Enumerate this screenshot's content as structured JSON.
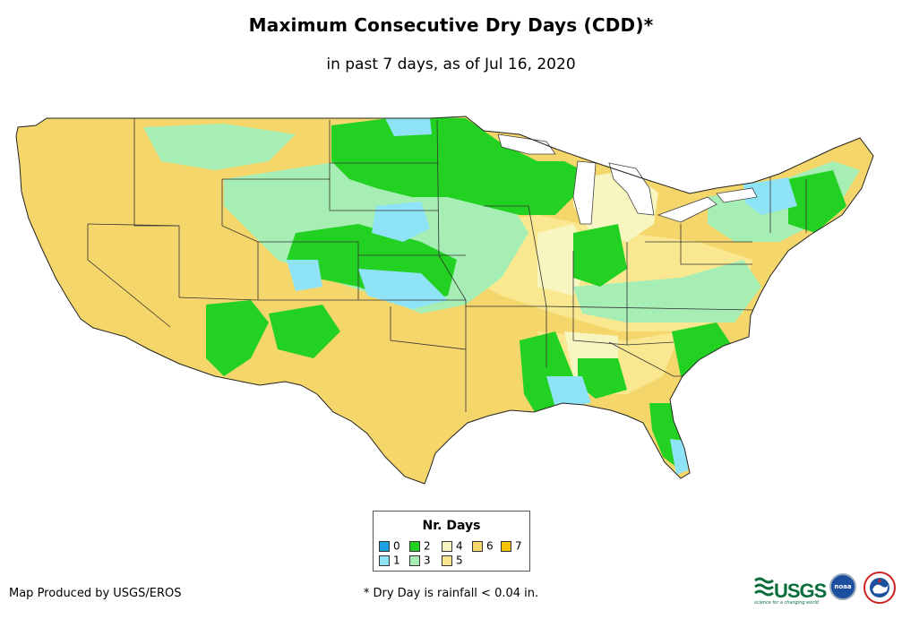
{
  "title": "Maximum Consecutive Dry Days (CDD)*",
  "subtitle": "in past 7 days, as of Jul 16, 2020",
  "legend": {
    "title": "Nr. Days",
    "items": [
      {
        "label": "0",
        "color": "#1ba0e0"
      },
      {
        "label": "1",
        "color": "#8fe3f7"
      },
      {
        "label": "2",
        "color": "#22d122"
      },
      {
        "label": "3",
        "color": "#a6eeb4"
      },
      {
        "label": "4",
        "color": "#f7f5c0"
      },
      {
        "label": "5",
        "color": "#f9e88f"
      },
      {
        "label": "6",
        "color": "#f5d66b"
      },
      {
        "label": "7",
        "color": "#f4c400"
      }
    ]
  },
  "credit": "Map Produced by USGS/EROS",
  "footnote": "* Dry Day is rainfall < 0.04 in.",
  "logos": {
    "usgs": "USGS",
    "usgs_tagline": "science for a changing world",
    "noaa": "noaa"
  }
}
